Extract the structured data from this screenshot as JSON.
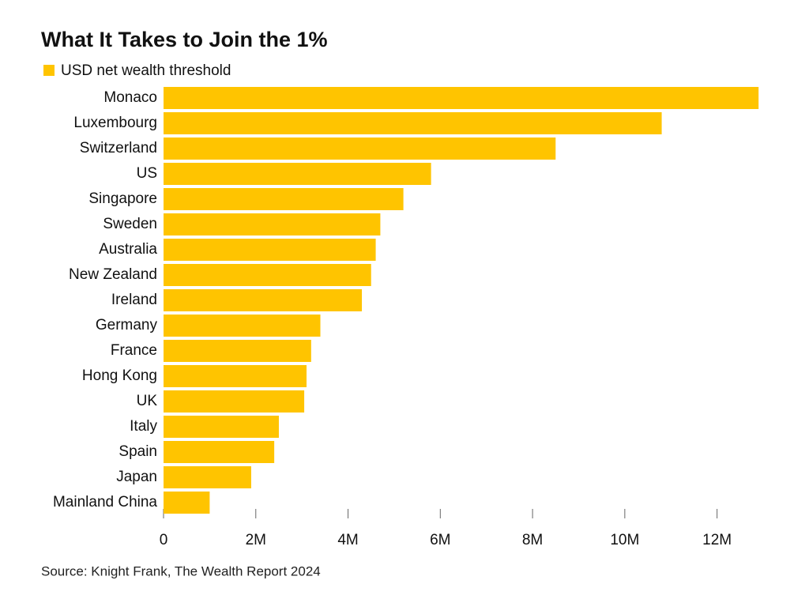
{
  "chart_data": {
    "type": "bar",
    "orientation": "horizontal",
    "title": "What It Takes to Join the 1%",
    "source": "Source: Knight Frank, The Wealth Report 2024",
    "categories": [
      "Monaco",
      "Luxembourg",
      "Switzerland",
      "US",
      "Singapore",
      "Sweden",
      "Australia",
      "New Zealand",
      "Ireland",
      "Germany",
      "France",
      "Hong Kong",
      "UK",
      "Italy",
      "Spain",
      "Japan",
      "Mainland China"
    ],
    "series": [
      {
        "name": "USD net wealth threshold",
        "color": "#ffc400",
        "values": [
          12900000,
          10800000,
          8500000,
          5800000,
          5200000,
          4700000,
          4600000,
          4500000,
          4300000,
          3400000,
          3200000,
          3100000,
          3050000,
          2500000,
          2400000,
          1900000,
          1000000
        ]
      }
    ],
    "xlim": [
      0,
      13000000
    ],
    "xticks": [
      0,
      {
        "value": 2000000,
        "label": "2M"
      },
      {
        "value": 4000000,
        "label": "4M"
      },
      {
        "value": 6000000,
        "label": "6M"
      },
      {
        "value": 8000000,
        "label": "8M"
      },
      {
        "value": 10000000,
        "label": "10M"
      },
      {
        "value": 12000000,
        "label": "12M"
      }
    ],
    "grid": false
  }
}
